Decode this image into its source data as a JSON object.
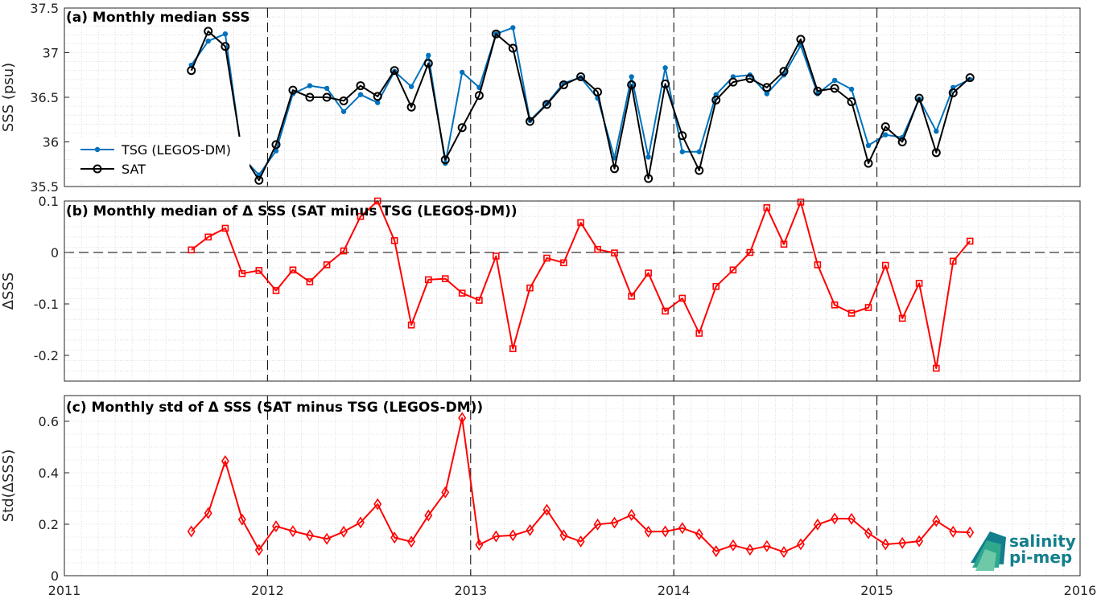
{
  "chart_data": [
    {
      "type": "line",
      "title": "(a) Monthly median SSS",
      "ylabel": "SSS (psu)",
      "xlim": [
        2011,
        2016
      ],
      "ylim": [
        35.5,
        37.5
      ],
      "yticks": [
        "35.5",
        "36",
        "36.5",
        "37",
        "37.5"
      ],
      "grid": true,
      "legend": "left",
      "series": [
        {
          "name": "TSG (LEGOS-DM)",
          "color": "#0072bd",
          "marker": "dot",
          "x": [
            2011.625,
            2011.708,
            2011.792,
            2011.875,
            2011.958,
            2012.042,
            2012.125,
            2012.208,
            2012.292,
            2012.375,
            2012.458,
            2012.542,
            2012.625,
            2012.708,
            2012.792,
            2012.875,
            2012.958,
            2013.042,
            2013.125,
            2013.208,
            2013.292,
            2013.375,
            2013.458,
            2013.542,
            2013.625,
            2013.708,
            2013.792,
            2013.875,
            2013.958,
            2014.042,
            2014.125,
            2014.208,
            2014.292,
            2014.375,
            2014.458,
            2014.542,
            2014.625,
            2014.708,
            2014.792,
            2014.875,
            2014.958,
            2015.042,
            2015.125,
            2015.208,
            2015.292,
            2015.375,
            2015.458
          ],
          "y": [
            36.86,
            37.13,
            37.21,
            35.83,
            35.63,
            35.9,
            36.54,
            36.63,
            36.6,
            36.34,
            36.53,
            36.44,
            36.79,
            36.62,
            36.97,
            35.76,
            36.78,
            36.61,
            37.21,
            37.28,
            36.24,
            36.43,
            36.66,
            36.72,
            36.49,
            35.82,
            36.73,
            35.83,
            36.83,
            35.89,
            35.89,
            36.53,
            36.73,
            36.75,
            36.54,
            36.75,
            37.08,
            36.54,
            36.69,
            36.59,
            35.96,
            36.08,
            36.05,
            36.48,
            36.12,
            36.61,
            36.7
          ]
        },
        {
          "name": "SAT",
          "color": "#000000",
          "marker": "circle",
          "x": [
            2011.625,
            2011.708,
            2011.792,
            2011.875,
            2011.958,
            2012.042,
            2012.125,
            2012.208,
            2012.292,
            2012.375,
            2012.458,
            2012.542,
            2012.625,
            2012.708,
            2012.792,
            2012.875,
            2012.958,
            2013.042,
            2013.125,
            2013.208,
            2013.292,
            2013.375,
            2013.458,
            2013.542,
            2013.625,
            2013.708,
            2013.792,
            2013.875,
            2013.958,
            2014.042,
            2014.125,
            2014.208,
            2014.292,
            2014.375,
            2014.458,
            2014.542,
            2014.625,
            2014.708,
            2014.792,
            2014.875,
            2014.958,
            2015.042,
            2015.125,
            2015.208,
            2015.292,
            2015.375,
            2015.458
          ],
          "y": [
            36.8,
            37.24,
            37.07,
            35.87,
            35.57,
            35.97,
            36.58,
            36.5,
            36.5,
            36.46,
            36.63,
            36.51,
            36.8,
            36.39,
            36.88,
            35.8,
            36.16,
            36.52,
            37.21,
            37.05,
            36.23,
            36.42,
            36.64,
            36.73,
            36.56,
            35.7,
            36.64,
            35.59,
            36.65,
            36.07,
            35.68,
            36.47,
            36.67,
            36.71,
            36.61,
            36.79,
            37.15,
            36.57,
            36.6,
            36.45,
            35.76,
            36.17,
            36.0,
            36.49,
            35.88,
            36.55,
            36.72
          ]
        }
      ]
    },
    {
      "type": "line",
      "title": "(b) Monthly median of Δ SSS (SAT minus TSG (LEGOS-DM))",
      "ylabel": "ΔSSS",
      "xlim": [
        2011,
        2016
      ],
      "ylim": [
        -0.25,
        0.1
      ],
      "yticks": [
        "-0.2",
        "-0.1",
        "0",
        "0.1"
      ],
      "grid": true,
      "series": [
        {
          "name": "",
          "color": "#ff0000",
          "marker": "square",
          "x": [
            2011.625,
            2011.708,
            2011.792,
            2011.875,
            2011.958,
            2012.042,
            2012.125,
            2012.208,
            2012.292,
            2012.375,
            2012.458,
            2012.542,
            2012.625,
            2012.708,
            2012.792,
            2012.875,
            2012.958,
            2013.042,
            2013.125,
            2013.208,
            2013.292,
            2013.375,
            2013.458,
            2013.542,
            2013.625,
            2013.708,
            2013.792,
            2013.875,
            2013.958,
            2014.042,
            2014.125,
            2014.208,
            2014.292,
            2014.375,
            2014.458,
            2014.542,
            2014.625,
            2014.708,
            2014.792,
            2014.875,
            2014.958,
            2015.042,
            2015.125,
            2015.208,
            2015.292,
            2015.375,
            2015.458
          ],
          "y": [
            0.005,
            0.03,
            0.047,
            -0.041,
            -0.035,
            -0.074,
            -0.034,
            -0.057,
            -0.024,
            0.003,
            0.07,
            0.1,
            0.023,
            -0.141,
            -0.053,
            -0.051,
            -0.079,
            -0.093,
            -0.007,
            -0.187,
            -0.069,
            -0.011,
            -0.02,
            0.058,
            0.006,
            -0.001,
            -0.085,
            -0.04,
            -0.114,
            -0.089,
            -0.157,
            -0.066,
            -0.034,
            0.0,
            0.087,
            0.016,
            0.098,
            -0.024,
            -0.102,
            -0.118,
            -0.107,
            -0.025,
            -0.128,
            -0.06,
            -0.225,
            -0.017,
            0.022
          ]
        }
      ]
    },
    {
      "type": "line",
      "title": "(c) Monthly std of Δ SSS (SAT minus TSG (LEGOS-DM))",
      "ylabel": "Std(ΔSSS)",
      "xlim": [
        2011,
        2016
      ],
      "ylim": [
        0,
        0.7
      ],
      "yticks": [
        "0",
        "0.2",
        "0.4",
        "0.6"
      ],
      "xticks": [
        "2011",
        "2012",
        "2013",
        "2014",
        "2015",
        "2016"
      ],
      "grid": true,
      "series": [
        {
          "name": "",
          "color": "#ff0000",
          "marker": "diamond",
          "x": [
            2011.625,
            2011.708,
            2011.792,
            2011.875,
            2011.958,
            2012.042,
            2012.125,
            2012.208,
            2012.292,
            2012.375,
            2012.458,
            2012.542,
            2012.625,
            2012.708,
            2012.792,
            2012.875,
            2012.958,
            2013.042,
            2013.125,
            2013.208,
            2013.292,
            2013.375,
            2013.458,
            2013.542,
            2013.625,
            2013.708,
            2013.792,
            2013.875,
            2013.958,
            2014.042,
            2014.125,
            2014.208,
            2014.292,
            2014.375,
            2014.458,
            2014.542,
            2014.625,
            2014.708,
            2014.792,
            2014.875,
            2014.958,
            2015.042,
            2015.125,
            2015.208,
            2015.292,
            2015.375,
            2015.458
          ],
          "y": [
            0.172,
            0.243,
            0.445,
            0.218,
            0.1,
            0.192,
            0.173,
            0.157,
            0.143,
            0.171,
            0.207,
            0.278,
            0.148,
            0.132,
            0.234,
            0.324,
            0.613,
            0.12,
            0.153,
            0.157,
            0.177,
            0.256,
            0.157,
            0.133,
            0.199,
            0.206,
            0.236,
            0.171,
            0.172,
            0.185,
            0.161,
            0.095,
            0.118,
            0.101,
            0.115,
            0.092,
            0.122,
            0.199,
            0.222,
            0.221,
            0.165,
            0.122,
            0.127,
            0.134,
            0.213,
            0.171,
            0.168
          ]
        }
      ]
    }
  ],
  "logo": {
    "line1": "salinity",
    "line2": "pi-mep"
  }
}
